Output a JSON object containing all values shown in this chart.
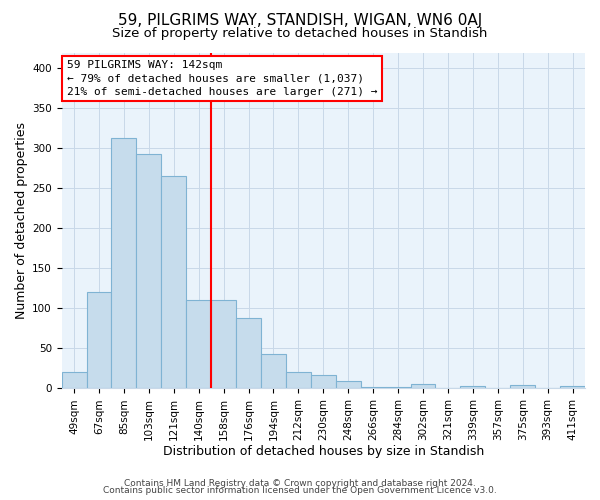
{
  "title": "59, PILGRIMS WAY, STANDISH, WIGAN, WN6 0AJ",
  "subtitle": "Size of property relative to detached houses in Standish",
  "xlabel": "Distribution of detached houses by size in Standish",
  "ylabel": "Number of detached properties",
  "bar_labels": [
    "49sqm",
    "67sqm",
    "85sqm",
    "103sqm",
    "121sqm",
    "140sqm",
    "158sqm",
    "176sqm",
    "194sqm",
    "212sqm",
    "230sqm",
    "248sqm",
    "266sqm",
    "284sqm",
    "302sqm",
    "321sqm",
    "339sqm",
    "357sqm",
    "375sqm",
    "393sqm",
    "411sqm"
  ],
  "bar_values": [
    20,
    120,
    313,
    293,
    265,
    110,
    110,
    88,
    43,
    21,
    17,
    9,
    2,
    2,
    5,
    1,
    3,
    1,
    4,
    1,
    3
  ],
  "bar_color": "#c6dcec",
  "bar_edge_color": "#7fb3d3",
  "vline_x": 5.5,
  "vline_color": "red",
  "annotation_line1": "59 PILGRIMS WAY: 142sqm",
  "annotation_line2": "← 79% of detached houses are smaller (1,037)",
  "annotation_line3": "21% of semi-detached houses are larger (271) →",
  "ylim": [
    0,
    420
  ],
  "yticks": [
    0,
    50,
    100,
    150,
    200,
    250,
    300,
    350,
    400
  ],
  "footer_line1": "Contains HM Land Registry data © Crown copyright and database right 2024.",
  "footer_line2": "Contains public sector information licensed under the Open Government Licence v3.0.",
  "bg_color": "#ffffff",
  "plot_bg_color": "#eaf3fb",
  "grid_color": "#c8d8e8",
  "title_fontsize": 11,
  "subtitle_fontsize": 9.5,
  "axis_label_fontsize": 9,
  "tick_fontsize": 7.5,
  "annotation_fontsize": 8,
  "footer_fontsize": 6.5
}
